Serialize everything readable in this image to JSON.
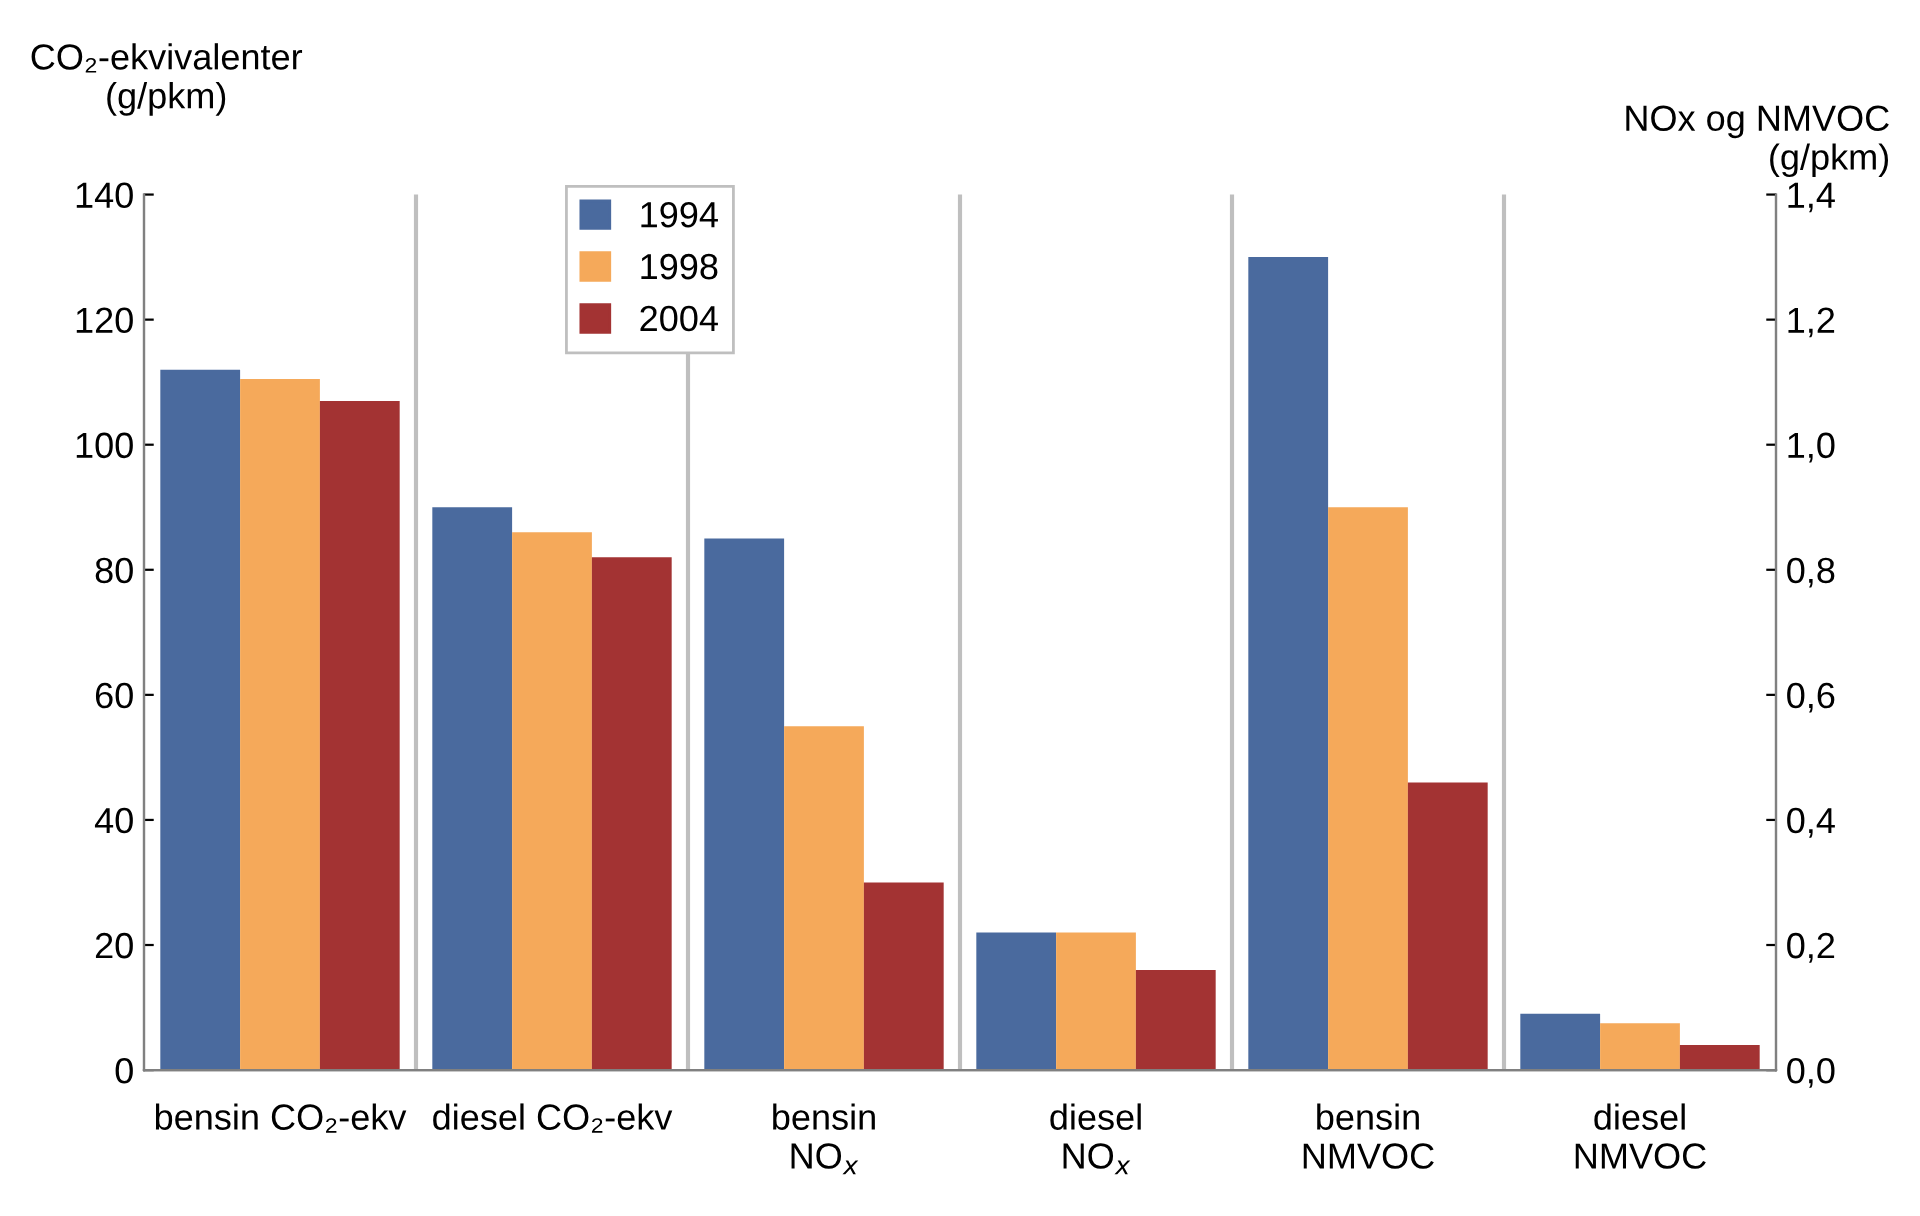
{
  "chart_data": {
    "type": "bar",
    "categories": [
      "bensin CO₂-ekv",
      "diesel CO₂-ekv",
      "bensin\nNO$_{x}$",
      "diesel\nNO$_{x}$",
      "bensin\nNMVOC",
      "diesel\nNMVOC"
    ],
    "ylabel": "CO₂-ekvivalenter\n(g/pkm)",
    "y2label": "NOx og NMVOC\n(g/pkm)",
    "ylim": [
      0,
      140
    ],
    "yticks": [
      0,
      20,
      40,
      60,
      80,
      100,
      120,
      140
    ],
    "y2lim": [
      0,
      1.4
    ],
    "y2ticks": [
      {
        "value": 0,
        "label": "0,0"
      },
      {
        "value": 0.2,
        "label": "0,2"
      },
      {
        "value": 0.4,
        "label": "0,4"
      },
      {
        "value": 0.6,
        "label": "0,6"
      },
      {
        "value": 0.8,
        "label": "0,8"
      },
      {
        "value": 1.0,
        "label": "1,0"
      },
      {
        "value": 1.2,
        "label": "1,2"
      },
      {
        "value": 1.4,
        "label": "1,4"
      }
    ],
    "series": [
      {
        "name": "1994",
        "color": "#4a6a9e",
        "values": [
          112,
          90,
          null,
          null,
          null,
          null
        ]
      },
      {
        "name": "1998",
        "color": "#f5a95a",
        "values": [
          110.5,
          86,
          null,
          null,
          null,
          null
        ]
      },
      {
        "name": "2004",
        "color": "#a33333",
        "values": [
          107,
          82,
          null,
          null,
          null,
          null
        ]
      },
      {
        "color": "#4a6a9e",
        "axis": "y2",
        "values": [
          null,
          null,
          0.85,
          0.22,
          1.3,
          0.09
        ]
      },
      {
        "color": "#f5a95a",
        "axis": "y2",
        "values": [
          null,
          null,
          0.55,
          0.22,
          0.9,
          0.075
        ]
      },
      {
        "color": "#a33333",
        "axis": "y2",
        "values": [
          null,
          null,
          0.3,
          0.16,
          0.46,
          0.04
        ]
      }
    ],
    "grid": "x",
    "legend": "top center"
  }
}
